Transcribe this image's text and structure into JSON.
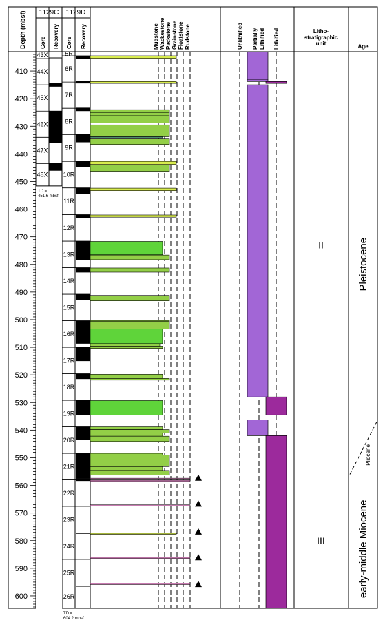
{
  "header": {
    "depth_label": "Depth (mbsf)",
    "hole_c": "1129C",
    "hole_d": "1129D",
    "core": "Core",
    "recovery": "Recovery",
    "texture_labels": [
      "Mudstone",
      "Wackestone",
      "Packstone",
      "Grainstone",
      "Floatstone",
      "Rudstone"
    ],
    "lith_labels": [
      "Unlithified",
      "Partially Lithified",
      "Lithified"
    ],
    "unit_label": "Litho-\nstratigraphic\nunit",
    "age_label": "Age"
  },
  "depth_axis": {
    "min": 403,
    "max": 604.5,
    "ticks": [
      410,
      420,
      430,
      440,
      450,
      460,
      470,
      480,
      490,
      500,
      510,
      520,
      530,
      540,
      550,
      560,
      570,
      580,
      590,
      600
    ]
  },
  "hole_c_cores": [
    {
      "name": "43X",
      "top": 403,
      "bot": 405.5
    },
    {
      "name": "44X",
      "top": 405.5,
      "bot": 415
    },
    {
      "name": "45X",
      "top": 415,
      "bot": 424.5
    },
    {
      "name": "46X",
      "top": 424.5,
      "bot": 434
    },
    {
      "name": "47X",
      "top": 434,
      "bot": 443.5
    },
    {
      "name": "48X",
      "top": 443.5,
      "bot": 451.6
    }
  ],
  "hole_c_recovery": [
    {
      "top": 403,
      "bot": 405.2,
      "type": "white"
    },
    {
      "top": 414.5,
      "bot": 415.6,
      "type": "black"
    },
    {
      "top": 424.5,
      "bot": 436,
      "type": "black"
    },
    {
      "top": 443.5,
      "bot": 446,
      "type": "black"
    }
  ],
  "hole_c_td": "TD =\n451.6 mbsf",
  "hole_d_cores": [
    {
      "name": "5R",
      "top": 403,
      "bot": 404.5
    },
    {
      "name": "6R",
      "top": 404.5,
      "bot": 414
    },
    {
      "name": "7R",
      "top": 414,
      "bot": 423.5
    },
    {
      "name": "8R",
      "top": 423.5,
      "bot": 433
    },
    {
      "name": "9R",
      "top": 433,
      "bot": 442.7
    },
    {
      "name": "10R",
      "top": 442.7,
      "bot": 452.3
    },
    {
      "name": "11R",
      "top": 452.3,
      "bot": 462
    },
    {
      "name": "12R",
      "top": 462,
      "bot": 471.6
    },
    {
      "name": "13R",
      "top": 471.6,
      "bot": 481.2
    },
    {
      "name": "14R",
      "top": 481.2,
      "bot": 490.8
    },
    {
      "name": "15R",
      "top": 490.8,
      "bot": 500.4
    },
    {
      "name": "16R",
      "top": 500.4,
      "bot": 510
    },
    {
      "name": "17R",
      "top": 510,
      "bot": 519.6
    },
    {
      "name": "18R",
      "top": 519.6,
      "bot": 529.2
    },
    {
      "name": "19R",
      "top": 529.2,
      "bot": 538.8
    },
    {
      "name": "20R",
      "top": 538.8,
      "bot": 548.4
    },
    {
      "name": "21R",
      "top": 548.4,
      "bot": 558
    },
    {
      "name": "22R",
      "top": 558,
      "bot": 567.6
    },
    {
      "name": "23R",
      "top": 567.6,
      "bot": 577.2
    },
    {
      "name": "24R",
      "top": 577.2,
      "bot": 586.8
    },
    {
      "name": "25R",
      "top": 586.8,
      "bot": 596.4
    },
    {
      "name": "26R",
      "top": 596.4,
      "bot": 604.2
    }
  ],
  "hole_d_recovery": [
    {
      "top": 404.5,
      "bot": 405.5
    },
    {
      "top": 413.5,
      "bot": 414.5
    },
    {
      "top": 423.3,
      "bot": 424.5
    },
    {
      "top": 433,
      "bot": 435.8
    },
    {
      "top": 442.7,
      "bot": 444.8
    },
    {
      "top": 452.3,
      "bot": 454.5
    },
    {
      "top": 462,
      "bot": 463.2
    },
    {
      "top": 471.6,
      "bot": 478.4
    },
    {
      "top": 481.2,
      "bot": 482.9
    },
    {
      "top": 490.8,
      "bot": 493
    },
    {
      "top": 500.4,
      "bot": 508.7
    },
    {
      "top": 510,
      "bot": 515
    },
    {
      "top": 519.6,
      "bot": 521.5
    },
    {
      "top": 529.2,
      "bot": 534.5
    },
    {
      "top": 538.8,
      "bot": 543.5
    },
    {
      "top": 548.4,
      "bot": 557.5
    },
    {
      "top": 557.5,
      "bot": 558.4
    },
    {
      "top": 577.2,
      "bot": 577.5
    },
    {
      "top": 596.4,
      "bot": 596.6
    }
  ],
  "hole_d_td": "TD =\n604.2 mbsf",
  "texture_beds": [
    {
      "top": 404.5,
      "bot": 405.4,
      "tex": 4,
      "color": "#d8ec4e"
    },
    {
      "top": 413.8,
      "bot": 414.5,
      "tex": 4,
      "color": "#d8ec4e"
    },
    {
      "top": 424,
      "bot": 425,
      "tex": 3.5,
      "color": "#93cf47"
    },
    {
      "top": 425,
      "bot": 426.2,
      "tex": 3.5,
      "color": "#93cf47"
    },
    {
      "top": 426.2,
      "bot": 428.8,
      "tex": 3.5,
      "color": "#93cf47"
    },
    {
      "top": 429.5,
      "bot": 433.8,
      "tex": 3.5,
      "color": "#93cf47"
    },
    {
      "top": 433.8,
      "bot": 434.4,
      "tex": 3,
      "color": "#4d8b6f"
    },
    {
      "top": 434.6,
      "bot": 436.6,
      "tex": 3.5,
      "color": "#93cf47"
    },
    {
      "top": 442.7,
      "bot": 443.8,
      "tex": 4,
      "color": "#d8ec4e"
    },
    {
      "top": 444,
      "bot": 446.3,
      "tex": 3.5,
      "color": "#93cf47"
    },
    {
      "top": 452.4,
      "bot": 453.3,
      "tex": 4,
      "color": "#d8ec4e"
    },
    {
      "top": 462.1,
      "bot": 462.9,
      "tex": 4,
      "color": "#d8ec4e"
    },
    {
      "top": 471.7,
      "bot": 476.5,
      "tex": 3,
      "color": "#5fd43a"
    },
    {
      "top": 476.6,
      "bot": 478.3,
      "tex": 3.5,
      "color": "#93cf47"
    },
    {
      "top": 481.3,
      "bot": 482.8,
      "tex": 3.5,
      "color": "#93cf47"
    },
    {
      "top": 491.2,
      "bot": 493.2,
      "tex": 3.5,
      "color": "#93cf47"
    },
    {
      "top": 500.3,
      "bot": 500.7,
      "tex": 3.5,
      "color": "#93cf47"
    },
    {
      "top": 500.7,
      "bot": 503.4,
      "tex": 3.5,
      "color": "#93cf47"
    },
    {
      "top": 503.4,
      "bot": 508.7,
      "tex": 3,
      "color": "#5fd43a"
    },
    {
      "top": 508.7,
      "bot": 509.6,
      "tex": 2.8,
      "color": "#93cf47"
    },
    {
      "top": 509.6,
      "bot": 510.4,
      "tex": 3,
      "color": "#93cf47"
    },
    {
      "top": 519.8,
      "bot": 521.3,
      "tex": 3,
      "color": "#93cf47"
    },
    {
      "top": 521.3,
      "bot": 521.9,
      "tex": 3.5,
      "color": "#93cf47"
    },
    {
      "top": 529.3,
      "bot": 534.5,
      "tex": 3,
      "color": "#5fd43a"
    },
    {
      "top": 538.8,
      "bot": 539.8,
      "tex": 3,
      "color": "#93cf47"
    },
    {
      "top": 539.8,
      "bot": 541,
      "tex": 3.5,
      "color": "#93cf47"
    },
    {
      "top": 541,
      "bot": 542.2,
      "tex": 3,
      "color": "#93cf47"
    },
    {
      "top": 542.2,
      "bot": 544.1,
      "tex": 3.5,
      "color": "#93cf47"
    },
    {
      "top": 548.4,
      "bot": 549,
      "tex": 3,
      "color": "#93cf47"
    },
    {
      "top": 549,
      "bot": 553.2,
      "tex": 3.5,
      "color": "#93cf47"
    },
    {
      "top": 553.2,
      "bot": 554.6,
      "tex": 3,
      "color": "#93cf47"
    },
    {
      "top": 554.6,
      "bot": 556.2,
      "tex": 3.5,
      "color": "#93cf47"
    },
    {
      "top": 577.3,
      "bot": 577.7,
      "tex": 4,
      "color": "#d8ec4e"
    }
  ],
  "thin_beds": [
    557.6,
    558.3,
    567.2,
    586.2,
    595.6
  ],
  "triangles": [
    557.3,
    566.7,
    576.8,
    586.1,
    595.8
  ],
  "lithification": [
    {
      "top": 403,
      "bot": 413,
      "col": 1,
      "color": "#a266d6"
    },
    {
      "top": 413,
      "bot": 413.8,
      "col": 1,
      "color": "#a266d6"
    },
    {
      "top": 413.8,
      "bot": 414.5,
      "col": 2,
      "color": "#9c2a9c"
    },
    {
      "top": 415,
      "bot": 528,
      "col": 1,
      "color": "#a266d6"
    },
    {
      "top": 528,
      "bot": 534.5,
      "col": 2,
      "color": "#9c2a9c"
    },
    {
      "top": 536.3,
      "bot": 542,
      "col": 1,
      "color": "#a266d6"
    },
    {
      "top": 542,
      "bot": 604.5,
      "col": 2,
      "color": "#9c2a9c"
    }
  ],
  "units": [
    {
      "label": "II",
      "top": 403,
      "bot": 557,
      "mid": 473
    },
    {
      "label": "III",
      "top": 557,
      "bot": 604.5,
      "mid": 580
    }
  ],
  "ages": [
    {
      "label": "Pleistocene",
      "mid": 480
    },
    {
      "label": "early-middle Miocene",
      "mid": 583
    },
    {
      "label": "Pliocene",
      "mid": 549
    }
  ]
}
